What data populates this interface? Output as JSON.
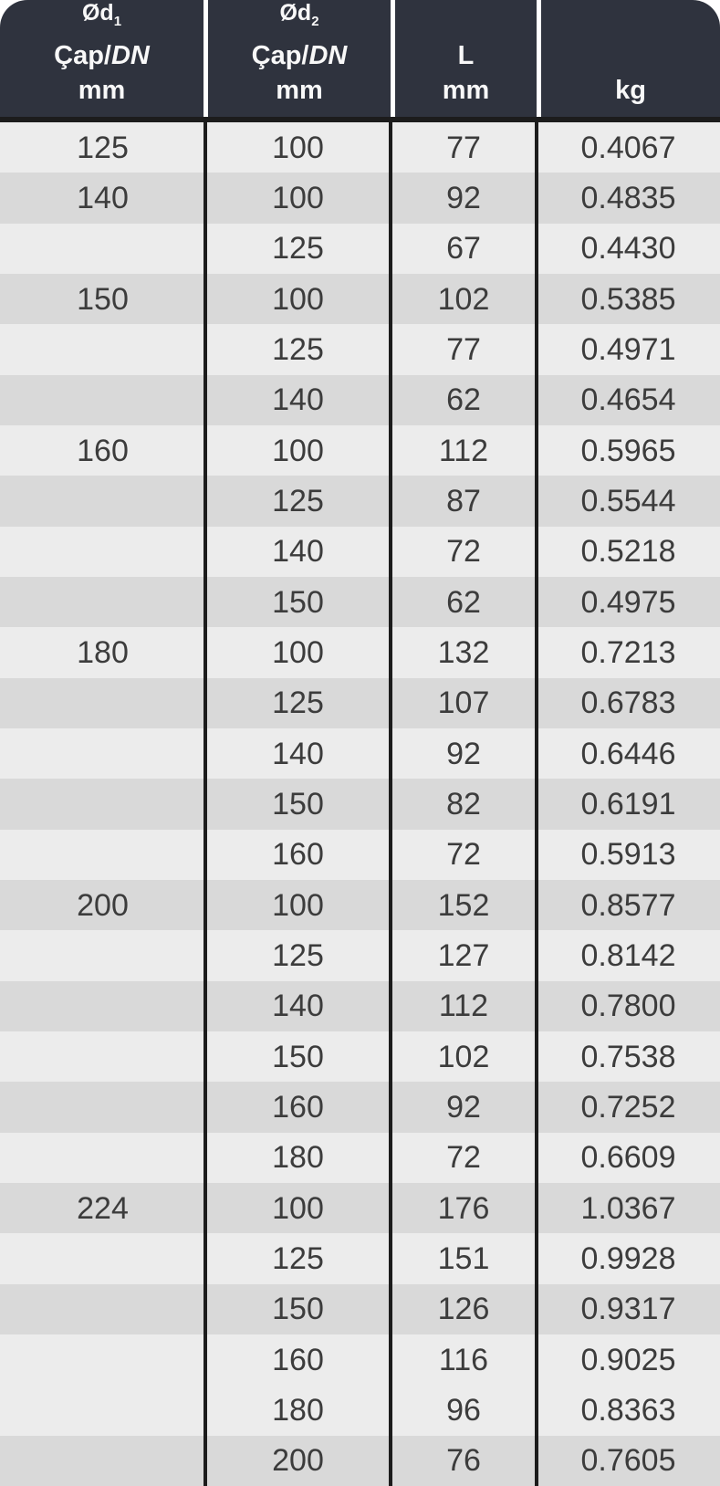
{
  "colors": {
    "header_bg": "#2f333e",
    "header_text": "#f8f8f8",
    "row_light": "#ececec",
    "row_dark": "#d9d9d9",
    "body_text": "#3c3c3c",
    "separator": "#1c1c1c",
    "page_bg": "#ffffff"
  },
  "table": {
    "header": {
      "col1": {
        "symbol": "Ød",
        "sub": "1",
        "cap": "Çap/",
        "dn": "DN",
        "unit": "mm"
      },
      "col2": {
        "symbol": "Ød",
        "sub": "2",
        "cap": "Çap/",
        "dn": "DN",
        "unit": "mm"
      },
      "col3": {
        "label": "L",
        "unit": "mm"
      },
      "col4": {
        "label": "kg"
      }
    },
    "row_shades": [
      "light",
      "dark",
      "light",
      "dark",
      "light",
      "dark",
      "light",
      "dark",
      "light",
      "dark",
      "light",
      "dark",
      "light",
      "dark",
      "light",
      "dark",
      "light",
      "dark",
      "light",
      "dark",
      "light",
      "dark",
      "light",
      "dark",
      "light",
      "light",
      "dark"
    ]
  },
  "chart_data": {
    "type": "table",
    "title": "",
    "columns": [
      "Ød1 Çap/DN mm",
      "Ød2 Çap/DN mm",
      "L mm",
      "kg"
    ],
    "rows": [
      [
        "125",
        "100",
        "77",
        "0.4067"
      ],
      [
        "140",
        "100",
        "92",
        "0.4835"
      ],
      [
        "",
        "125",
        "67",
        "0.4430"
      ],
      [
        "150",
        "100",
        "102",
        "0.5385"
      ],
      [
        "",
        "125",
        "77",
        "0.4971"
      ],
      [
        "",
        "140",
        "62",
        "0.4654"
      ],
      [
        "160",
        "100",
        "112",
        "0.5965"
      ],
      [
        "",
        "125",
        "87",
        "0.5544"
      ],
      [
        "",
        "140",
        "72",
        "0.5218"
      ],
      [
        "",
        "150",
        "62",
        "0.4975"
      ],
      [
        "180",
        "100",
        "132",
        "0.7213"
      ],
      [
        "",
        "125",
        "107",
        "0.6783"
      ],
      [
        "",
        "140",
        "92",
        "0.6446"
      ],
      [
        "",
        "150",
        "82",
        "0.6191"
      ],
      [
        "",
        "160",
        "72",
        "0.5913"
      ],
      [
        "200",
        "100",
        "152",
        "0.8577"
      ],
      [
        "",
        "125",
        "127",
        "0.8142"
      ],
      [
        "",
        "140",
        "112",
        "0.7800"
      ],
      [
        "",
        "150",
        "102",
        "0.7538"
      ],
      [
        "",
        "160",
        "92",
        "0.7252"
      ],
      [
        "",
        "180",
        "72",
        "0.6609"
      ],
      [
        "224",
        "100",
        "176",
        "1.0367"
      ],
      [
        "",
        "125",
        "151",
        "0.9928"
      ],
      [
        "",
        "150",
        "126",
        "0.9317"
      ],
      [
        "",
        "160",
        "116",
        "0.9025"
      ],
      [
        "",
        "180",
        "96",
        "0.8363"
      ],
      [
        "",
        "200",
        "76",
        "0.7605"
      ]
    ]
  }
}
